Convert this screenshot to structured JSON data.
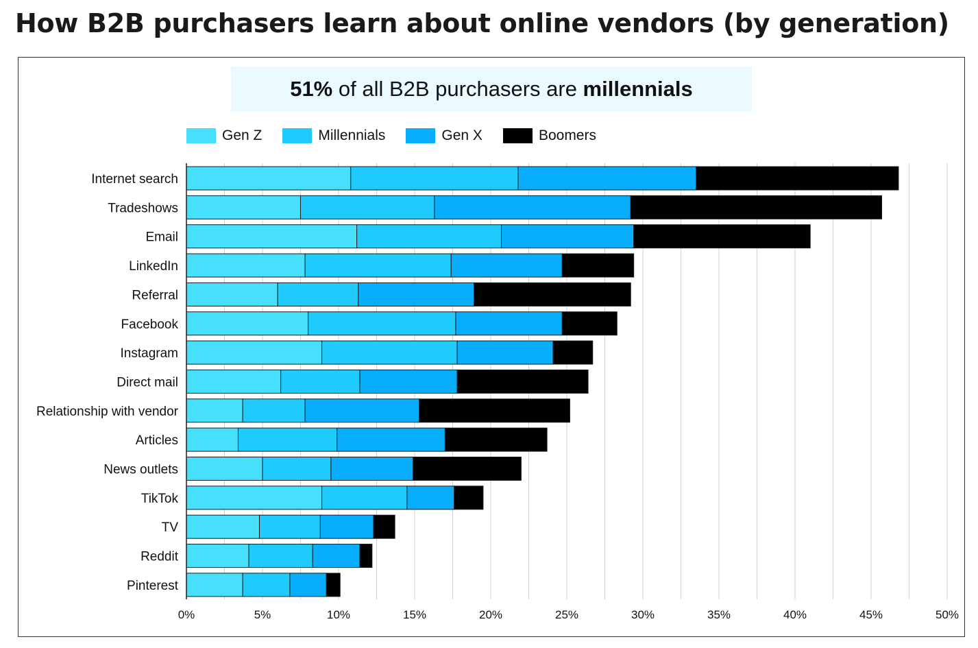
{
  "title": "How B2B purchasers learn about online vendors (by generation)",
  "callout": {
    "part1": "51%",
    "part2": " of all B2B purchasers are ",
    "part3": "millennials"
  },
  "colors": {
    "gen_z": "#46e0fc",
    "millennials": "#1fcbfd",
    "gen_x": "#08aefb",
    "boomers": "#000000",
    "grid": "#d0d0d0"
  },
  "chart_data": {
    "type": "bar",
    "orientation": "horizontal",
    "stacked": true,
    "categories": [
      "Internet search",
      "Tradeshows",
      "Email",
      "LinkedIn",
      "Referral",
      "Facebook",
      "Instagram",
      "Direct mail",
      "Relationship with vendor",
      "Articles",
      "News outlets",
      "TikTok",
      "TV",
      "Reddit",
      "Pinterest"
    ],
    "series": [
      {
        "name": "Gen Z",
        "values": [
          10.8,
          7.5,
          11.2,
          7.8,
          6.0,
          8.0,
          8.9,
          6.2,
          3.7,
          3.4,
          5.0,
          8.9,
          4.8,
          4.1,
          3.7
        ]
      },
      {
        "name": "Millennials",
        "values": [
          11.0,
          8.8,
          9.5,
          9.6,
          5.3,
          9.7,
          8.9,
          5.2,
          4.1,
          6.5,
          4.5,
          5.6,
          4.0,
          4.2,
          3.1
        ]
      },
      {
        "name": "Gen X",
        "values": [
          11.7,
          12.9,
          8.7,
          7.3,
          7.6,
          7.0,
          6.3,
          6.4,
          7.5,
          7.1,
          5.4,
          3.1,
          3.5,
          3.1,
          2.4
        ]
      },
      {
        "name": "Boomers",
        "values": [
          13.3,
          16.5,
          11.6,
          4.7,
          10.3,
          3.6,
          2.6,
          8.6,
          9.9,
          6.7,
          7.1,
          1.9,
          1.4,
          0.8,
          0.9
        ]
      }
    ],
    "xlim": [
      0,
      50
    ],
    "x_ticks": [
      "0%",
      "5%",
      "10%",
      "15%",
      "20%",
      "25%",
      "30%",
      "35%",
      "40%",
      "45%",
      "50%"
    ],
    "grid": "vertical",
    "legend_position": "top"
  }
}
